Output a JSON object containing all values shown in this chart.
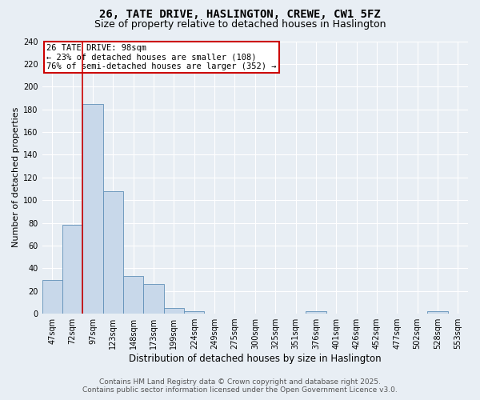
{
  "title": "26, TATE DRIVE, HASLINGTON, CREWE, CW1 5FZ",
  "subtitle": "Size of property relative to detached houses in Haslington",
  "xlabel": "Distribution of detached houses by size in Haslington",
  "ylabel": "Number of detached properties",
  "footer_line1": "Contains HM Land Registry data © Crown copyright and database right 2025.",
  "footer_line2": "Contains public sector information licensed under the Open Government Licence v3.0.",
  "categories": [
    "47sqm",
    "72sqm",
    "97sqm",
    "123sqm",
    "148sqm",
    "173sqm",
    "199sqm",
    "224sqm",
    "249sqm",
    "275sqm",
    "300sqm",
    "325sqm",
    "351sqm",
    "376sqm",
    "401sqm",
    "426sqm",
    "452sqm",
    "477sqm",
    "502sqm",
    "528sqm",
    "553sqm"
  ],
  "values": [
    30,
    78,
    185,
    108,
    33,
    26,
    5,
    2,
    0,
    0,
    0,
    0,
    0,
    2,
    0,
    0,
    0,
    0,
    0,
    2,
    0
  ],
  "bar_color": "#c8d8ea",
  "bar_edge_color": "#6090b8",
  "red_line_color": "#cc0000",
  "red_line_bar_index": 2,
  "annotation_text_line1": "26 TATE DRIVE: 98sqm",
  "annotation_text_line2": "← 23% of detached houses are smaller (108)",
  "annotation_text_line3": "76% of semi-detached houses are larger (352) →",
  "annotation_box_facecolor": "#ffffff",
  "annotation_border_color": "#cc0000",
  "ylim": [
    0,
    240
  ],
  "yticks": [
    0,
    20,
    40,
    60,
    80,
    100,
    120,
    140,
    160,
    180,
    200,
    220,
    240
  ],
  "background_color": "#e8eef4",
  "grid_color": "#ffffff",
  "title_fontsize": 10,
  "subtitle_fontsize": 9,
  "xlabel_fontsize": 8.5,
  "ylabel_fontsize": 8,
  "tick_fontsize": 7,
  "annotation_fontsize": 7.5,
  "footer_fontsize": 6.5
}
